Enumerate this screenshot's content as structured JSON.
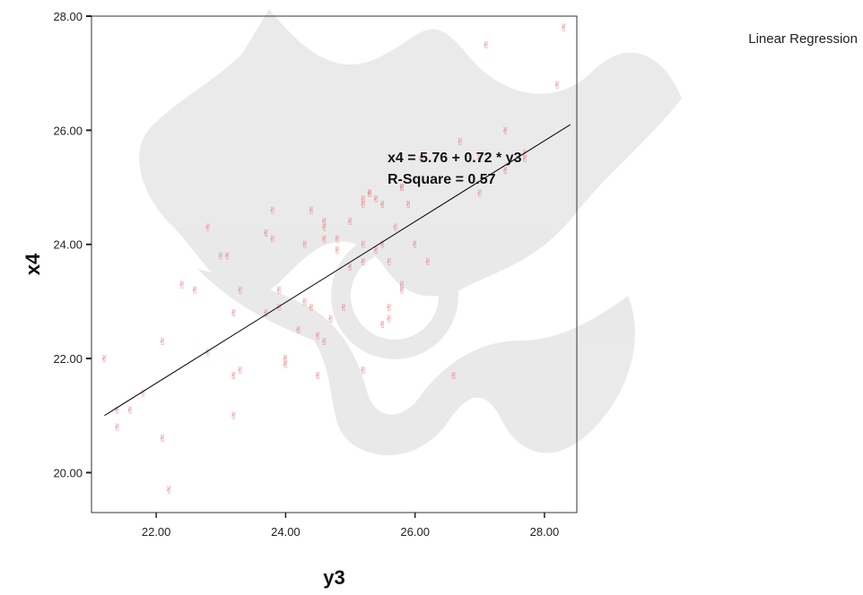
{
  "chart_data": {
    "type": "scatter",
    "xlabel": "y3",
    "ylabel": "x4",
    "xlim": [
      21.0,
      28.5
    ],
    "ylim": [
      19.3,
      28.0
    ],
    "x_ticks": [
      22,
      24,
      26,
      28
    ],
    "y_ticks": [
      20,
      22,
      24,
      26,
      28
    ],
    "x_tick_labels": [
      "22.00",
      "24.00",
      "26.00",
      "28.00"
    ],
    "y_tick_labels": [
      "20.00",
      "22.00",
      "24.00",
      "26.00",
      "28.00"
    ],
    "grid": false,
    "legend": {
      "label": "Linear Regression",
      "placement": "top-right"
    },
    "annotations": {
      "equation": "x4 = 5.76 + 0.72 * y3",
      "r_square": "R-Square = 0.57"
    },
    "regression_line": {
      "x": [
        21.2,
        28.4
      ],
      "y": [
        21.0,
        26.1
      ]
    },
    "marker_color": "#e88080",
    "line_color": "#000000",
    "points": [
      {
        "x": 21.2,
        "y": 22.0
      },
      {
        "x": 21.4,
        "y": 21.1
      },
      {
        "x": 21.4,
        "y": 20.8
      },
      {
        "x": 21.6,
        "y": 21.1
      },
      {
        "x": 21.8,
        "y": 21.4
      },
      {
        "x": 22.1,
        "y": 22.3
      },
      {
        "x": 22.1,
        "y": 20.6
      },
      {
        "x": 22.2,
        "y": 19.7
      },
      {
        "x": 22.4,
        "y": 23.3
      },
      {
        "x": 22.6,
        "y": 23.2
      },
      {
        "x": 22.8,
        "y": 24.3
      },
      {
        "x": 22.8,
        "y": 22.1
      },
      {
        "x": 23.0,
        "y": 23.8
      },
      {
        "x": 23.1,
        "y": 23.8
      },
      {
        "x": 23.2,
        "y": 22.8
      },
      {
        "x": 23.2,
        "y": 21.7
      },
      {
        "x": 23.3,
        "y": 21.8
      },
      {
        "x": 23.2,
        "y": 21.0
      },
      {
        "x": 23.3,
        "y": 23.2
      },
      {
        "x": 23.7,
        "y": 22.8
      },
      {
        "x": 23.7,
        "y": 24.2
      },
      {
        "x": 23.8,
        "y": 24.6
      },
      {
        "x": 23.8,
        "y": 24.1
      },
      {
        "x": 23.9,
        "y": 23.2
      },
      {
        "x": 23.9,
        "y": 22.9
      },
      {
        "x": 24.0,
        "y": 22.0
      },
      {
        "x": 24.0,
        "y": 21.9
      },
      {
        "x": 24.2,
        "y": 22.5
      },
      {
        "x": 24.3,
        "y": 23.0
      },
      {
        "x": 24.3,
        "y": 24.0
      },
      {
        "x": 24.4,
        "y": 24.6
      },
      {
        "x": 24.4,
        "y": 22.9
      },
      {
        "x": 24.5,
        "y": 21.7
      },
      {
        "x": 24.5,
        "y": 22.4
      },
      {
        "x": 24.6,
        "y": 22.3
      },
      {
        "x": 24.6,
        "y": 24.4
      },
      {
        "x": 24.6,
        "y": 24.1
      },
      {
        "x": 24.6,
        "y": 24.3
      },
      {
        "x": 24.7,
        "y": 22.7
      },
      {
        "x": 24.8,
        "y": 23.9
      },
      {
        "x": 24.8,
        "y": 24.1
      },
      {
        "x": 24.9,
        "y": 22.9
      },
      {
        "x": 25.0,
        "y": 23.6
      },
      {
        "x": 25.0,
        "y": 24.4
      },
      {
        "x": 25.2,
        "y": 24.8
      },
      {
        "x": 25.2,
        "y": 24.7
      },
      {
        "x": 25.2,
        "y": 24.0
      },
      {
        "x": 25.2,
        "y": 23.7
      },
      {
        "x": 25.2,
        "y": 21.8
      },
      {
        "x": 25.3,
        "y": 24.9
      },
      {
        "x": 25.3,
        "y": 24.9
      },
      {
        "x": 25.4,
        "y": 24.8
      },
      {
        "x": 25.4,
        "y": 23.9
      },
      {
        "x": 25.5,
        "y": 24.0
      },
      {
        "x": 25.5,
        "y": 24.7
      },
      {
        "x": 25.5,
        "y": 22.6
      },
      {
        "x": 25.6,
        "y": 22.7
      },
      {
        "x": 25.6,
        "y": 23.7
      },
      {
        "x": 25.6,
        "y": 22.9
      },
      {
        "x": 25.7,
        "y": 24.3
      },
      {
        "x": 25.8,
        "y": 25.0
      },
      {
        "x": 25.8,
        "y": 25.0
      },
      {
        "x": 25.8,
        "y": 23.2
      },
      {
        "x": 25.8,
        "y": 23.3
      },
      {
        "x": 25.9,
        "y": 24.7
      },
      {
        "x": 26.0,
        "y": 24.0
      },
      {
        "x": 26.1,
        "y": 25.5
      },
      {
        "x": 26.2,
        "y": 23.7
      },
      {
        "x": 26.6,
        "y": 21.7
      },
      {
        "x": 26.7,
        "y": 25.8
      },
      {
        "x": 27.0,
        "y": 25.5
      },
      {
        "x": 27.0,
        "y": 24.9
      },
      {
        "x": 27.1,
        "y": 27.5
      },
      {
        "x": 27.4,
        "y": 25.3
      },
      {
        "x": 27.4,
        "y": 26.0
      },
      {
        "x": 27.7,
        "y": 25.6
      },
      {
        "x": 27.7,
        "y": 25.5
      },
      {
        "x": 28.2,
        "y": 26.8
      },
      {
        "x": 28.3,
        "y": 27.8
      }
    ]
  }
}
